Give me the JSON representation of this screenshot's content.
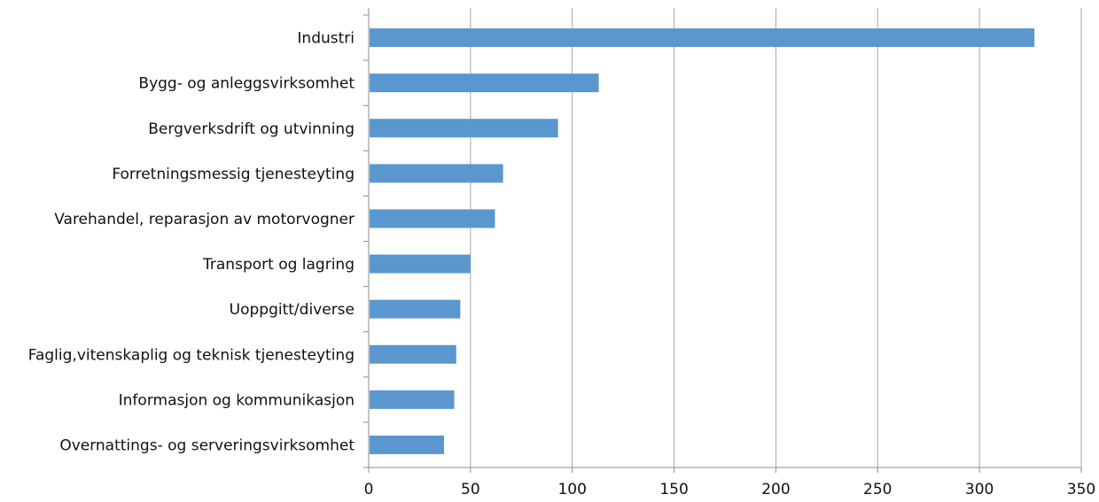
{
  "chart_data": {
    "type": "bar",
    "orientation": "horizontal",
    "title": "",
    "xlabel": "",
    "ylabel": "",
    "categories": [
      "Industri",
      "Bygg- og anleggsvirksomhet",
      "Bergverksdrift og utvinning",
      "Forretningsmessig tjenesteyting",
      "Varehandel, reparasjon av motorvogner",
      "Transport og lagring",
      "Uoppgitt/diverse",
      "Faglig,vitenskaplig og teknisk tjenesteyting",
      "Informasjon og kommunikasjon",
      "Overnattings- og serveringsvirksomhet"
    ],
    "values": [
      327,
      113,
      93,
      66,
      62,
      50,
      45,
      43,
      42,
      37
    ],
    "xlim": [
      0,
      350
    ],
    "xticks": [
      "0",
      "50",
      "100",
      "150",
      "200",
      "250",
      "300",
      "350"
    ],
    "grid": "vertical",
    "legend": "none",
    "colors": {
      "bar": "#5b97cf",
      "grid": "#a6a6a6",
      "axis": "#8c8c8c"
    }
  }
}
